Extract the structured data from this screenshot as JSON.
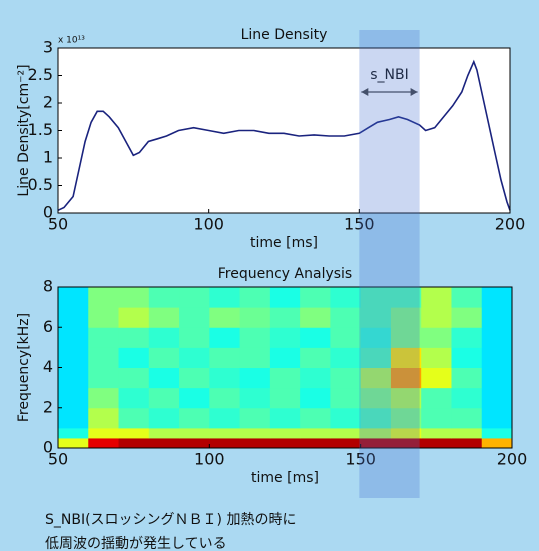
{
  "chart_data": [
    {
      "type": "line",
      "title": "Line Density",
      "multiplier": "x 10¹³",
      "xlabel": "time [ms]",
      "ylabel": "Line Density[cm⁻²]",
      "x": [
        50,
        52,
        55,
        57,
        59,
        61,
        63,
        65,
        67,
        70,
        73,
        75,
        77,
        80,
        83,
        86,
        90,
        95,
        100,
        105,
        110,
        115,
        120,
        125,
        130,
        135,
        140,
        145,
        150,
        153,
        156,
        160,
        163,
        166,
        170,
        172,
        175,
        178,
        181,
        184,
        186,
        188,
        189,
        191,
        193,
        195,
        197,
        199,
        200
      ],
      "values": [
        0.05,
        0.1,
        0.3,
        0.8,
        1.3,
        1.65,
        1.85,
        1.85,
        1.75,
        1.55,
        1.25,
        1.05,
        1.1,
        1.3,
        1.35,
        1.4,
        1.5,
        1.55,
        1.5,
        1.45,
        1.5,
        1.5,
        1.45,
        1.45,
        1.4,
        1.42,
        1.4,
        1.4,
        1.45,
        1.55,
        1.65,
        1.7,
        1.75,
        1.7,
        1.6,
        1.5,
        1.55,
        1.75,
        1.95,
        2.2,
        2.5,
        2.75,
        2.6,
        2.1,
        1.6,
        1.1,
        0.6,
        0.2,
        0.05
      ],
      "color": "#1a237e",
      "xlim": [
        50,
        200
      ],
      "xticks": [
        50,
        100,
        150,
        200
      ],
      "ylim": [
        0,
        3
      ],
      "yticks": [
        0,
        0.5,
        1,
        1.5,
        2,
        2.5,
        3
      ],
      "annotation": {
        "text": "s_NBI",
        "x": [
          150,
          170
        ]
      }
    },
    {
      "type": "heatmap",
      "title": "Frequency Analysis",
      "xlabel": "time [ms]",
      "ylabel": "Frequency[kHz]",
      "colormap": "jet",
      "xbins": [
        50,
        60,
        70,
        80,
        90,
        100,
        110,
        120,
        130,
        140,
        150,
        160,
        170,
        180,
        190,
        200
      ],
      "ybins": [
        0,
        0.5,
        1,
        2,
        3,
        4,
        5,
        6,
        7,
        8
      ],
      "z": [
        [
          0.6,
          0.9,
          0.95,
          0.95,
          0.95,
          0.95,
          0.95,
          0.95,
          0.95,
          0.95,
          0.95,
          0.95,
          0.95,
          0.95,
          0.7
        ],
        [
          0.4,
          0.6,
          0.6,
          0.55,
          0.55,
          0.55,
          0.55,
          0.55,
          0.55,
          0.55,
          0.55,
          0.6,
          0.55,
          0.55,
          0.4
        ],
        [
          0.35,
          0.55,
          0.45,
          0.42,
          0.45,
          0.42,
          0.45,
          0.42,
          0.45,
          0.42,
          0.45,
          0.5,
          0.45,
          0.45,
          0.35
        ],
        [
          0.35,
          0.5,
          0.42,
          0.45,
          0.4,
          0.45,
          0.42,
          0.45,
          0.4,
          0.45,
          0.5,
          0.55,
          0.45,
          0.42,
          0.35
        ],
        [
          0.35,
          0.45,
          0.45,
          0.4,
          0.45,
          0.42,
          0.4,
          0.45,
          0.42,
          0.45,
          0.55,
          0.72,
          0.6,
          0.45,
          0.35
        ],
        [
          0.35,
          0.45,
          0.4,
          0.45,
          0.42,
          0.45,
          0.45,
          0.4,
          0.45,
          0.42,
          0.45,
          0.65,
          0.55,
          0.4,
          0.35
        ],
        [
          0.35,
          0.45,
          0.45,
          0.42,
          0.45,
          0.4,
          0.45,
          0.42,
          0.4,
          0.45,
          0.42,
          0.5,
          0.5,
          0.42,
          0.35
        ],
        [
          0.35,
          0.5,
          0.55,
          0.5,
          0.45,
          0.5,
          0.48,
          0.45,
          0.5,
          0.45,
          0.45,
          0.5,
          0.55,
          0.5,
          0.35
        ],
        [
          0.35,
          0.5,
          0.5,
          0.45,
          0.45,
          0.42,
          0.45,
          0.4,
          0.45,
          0.42,
          0.45,
          0.45,
          0.55,
          0.45,
          0.35
        ]
      ],
      "xlim": [
        50,
        200
      ],
      "xticks": [
        50,
        100,
        150,
        200
      ],
      "ylim": [
        0,
        8
      ],
      "yticks": [
        0,
        2,
        4,
        6,
        8
      ]
    }
  ],
  "caption": [
    "S_NBI(スロッシングＮＢＩ) 加熱の時に",
    "低周波の揺動が発生している"
  ]
}
